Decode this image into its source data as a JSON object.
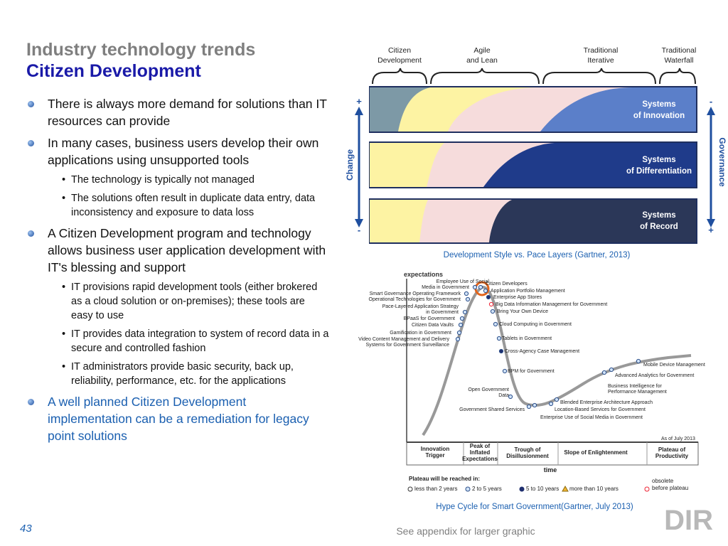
{
  "title": {
    "line1": "Industry technology trends",
    "line2": "Citizen Development"
  },
  "bullets": [
    {
      "text": "There is always more demand for solutions than IT resources can provide",
      "sub": []
    },
    {
      "text": "In many cases, business users develop their own applications using unsupported tools",
      "sub": [
        "The technology is typically not managed",
        "The solutions often result in duplicate data entry, data inconsistency and exposure to data loss"
      ]
    },
    {
      "text": "A Citizen Development program and technology allows business user application development with IT's blessing and support",
      "sub": [
        "IT provisions rapid development tools (either brokered as a cloud solution or on-premises); these tools are easy to use",
        "IT provides data integration to system of record data in a secure and controlled fashion",
        "IT administrators provide basic security, back up, reliability, performance, etc. for the applications"
      ]
    },
    {
      "text": "A well planned Citizen Development implementation can be a remediation for legacy point solutions",
      "sub": []
    }
  ],
  "pace": {
    "headers": [
      [
        "Citizen",
        "Development"
      ],
      [
        "Agile",
        "and Lean"
      ],
      [
        "Traditional",
        "Iterative"
      ],
      [
        "Traditional",
        "Waterfall"
      ]
    ],
    "layers": [
      [
        "Systems",
        "of Innovation"
      ],
      [
        "Systems",
        "of Differentiation"
      ],
      [
        "Systems",
        "of Record"
      ]
    ],
    "change": "Change",
    "governance": "Governance",
    "signs": [
      "+",
      "-",
      "-",
      "+"
    ],
    "caption": "Development Style vs. Pace Layers (Gartner, 2013)"
  },
  "hype": {
    "ylabel": "expectations",
    "left": [
      "Employee Use of Social",
      "Media in Government",
      "Smart Governance Operating Framework",
      "Operational Technologies for Government",
      "Pace-Layered Application Strategy",
      "in Government",
      "BPaaS for Government",
      "Citizen Data Vaults",
      "Gamification in Government",
      "Video Content Management and Delivery",
      "Systems for Government Surveillance",
      "Open Government",
      "Data",
      "Government Shared Services"
    ],
    "right": [
      "Citizen Developers",
      "Application Portfolio Management",
      "Enterprise App Stores",
      "Big Data Information Management for Government",
      "Bring Your Own Device",
      "Cloud Computing in Government",
      "Tablets in Government",
      "Cross-Agency Case Management",
      "BPM for Government",
      "Mobile Device Management",
      "Advanced Analytics for Government",
      "Business Intelligence for",
      "Performance Management",
      "Blended Enterprise Architecture Approach",
      "Location-Based Services for Government",
      "Enterprise Use of Social Media in Government"
    ],
    "asof": "As of July 2013",
    "phases": [
      [
        "Innovation",
        "Trigger"
      ],
      [
        "Peak of",
        "Inflated",
        "Expectations"
      ],
      [
        "Trough of",
        "Disillusionment"
      ],
      [
        "Slope of Enlightenment"
      ],
      [
        "Plateau of",
        "Productivity"
      ]
    ],
    "xlabel": "time",
    "legend_title": "Plateau will be reached in:",
    "legend": [
      [
        "less than 2 years"
      ],
      [
        "2 to 5 years"
      ],
      [
        "5 to 10 years"
      ],
      [
        "more than 10 years"
      ],
      [
        "obsolete",
        "before plateau"
      ]
    ],
    "caption": "Hype Cycle for Smart Government(Gartner, July 2013)"
  },
  "footer": {
    "page": "43",
    "note": "See appendix for larger graphic",
    "logo": "DIR"
  }
}
